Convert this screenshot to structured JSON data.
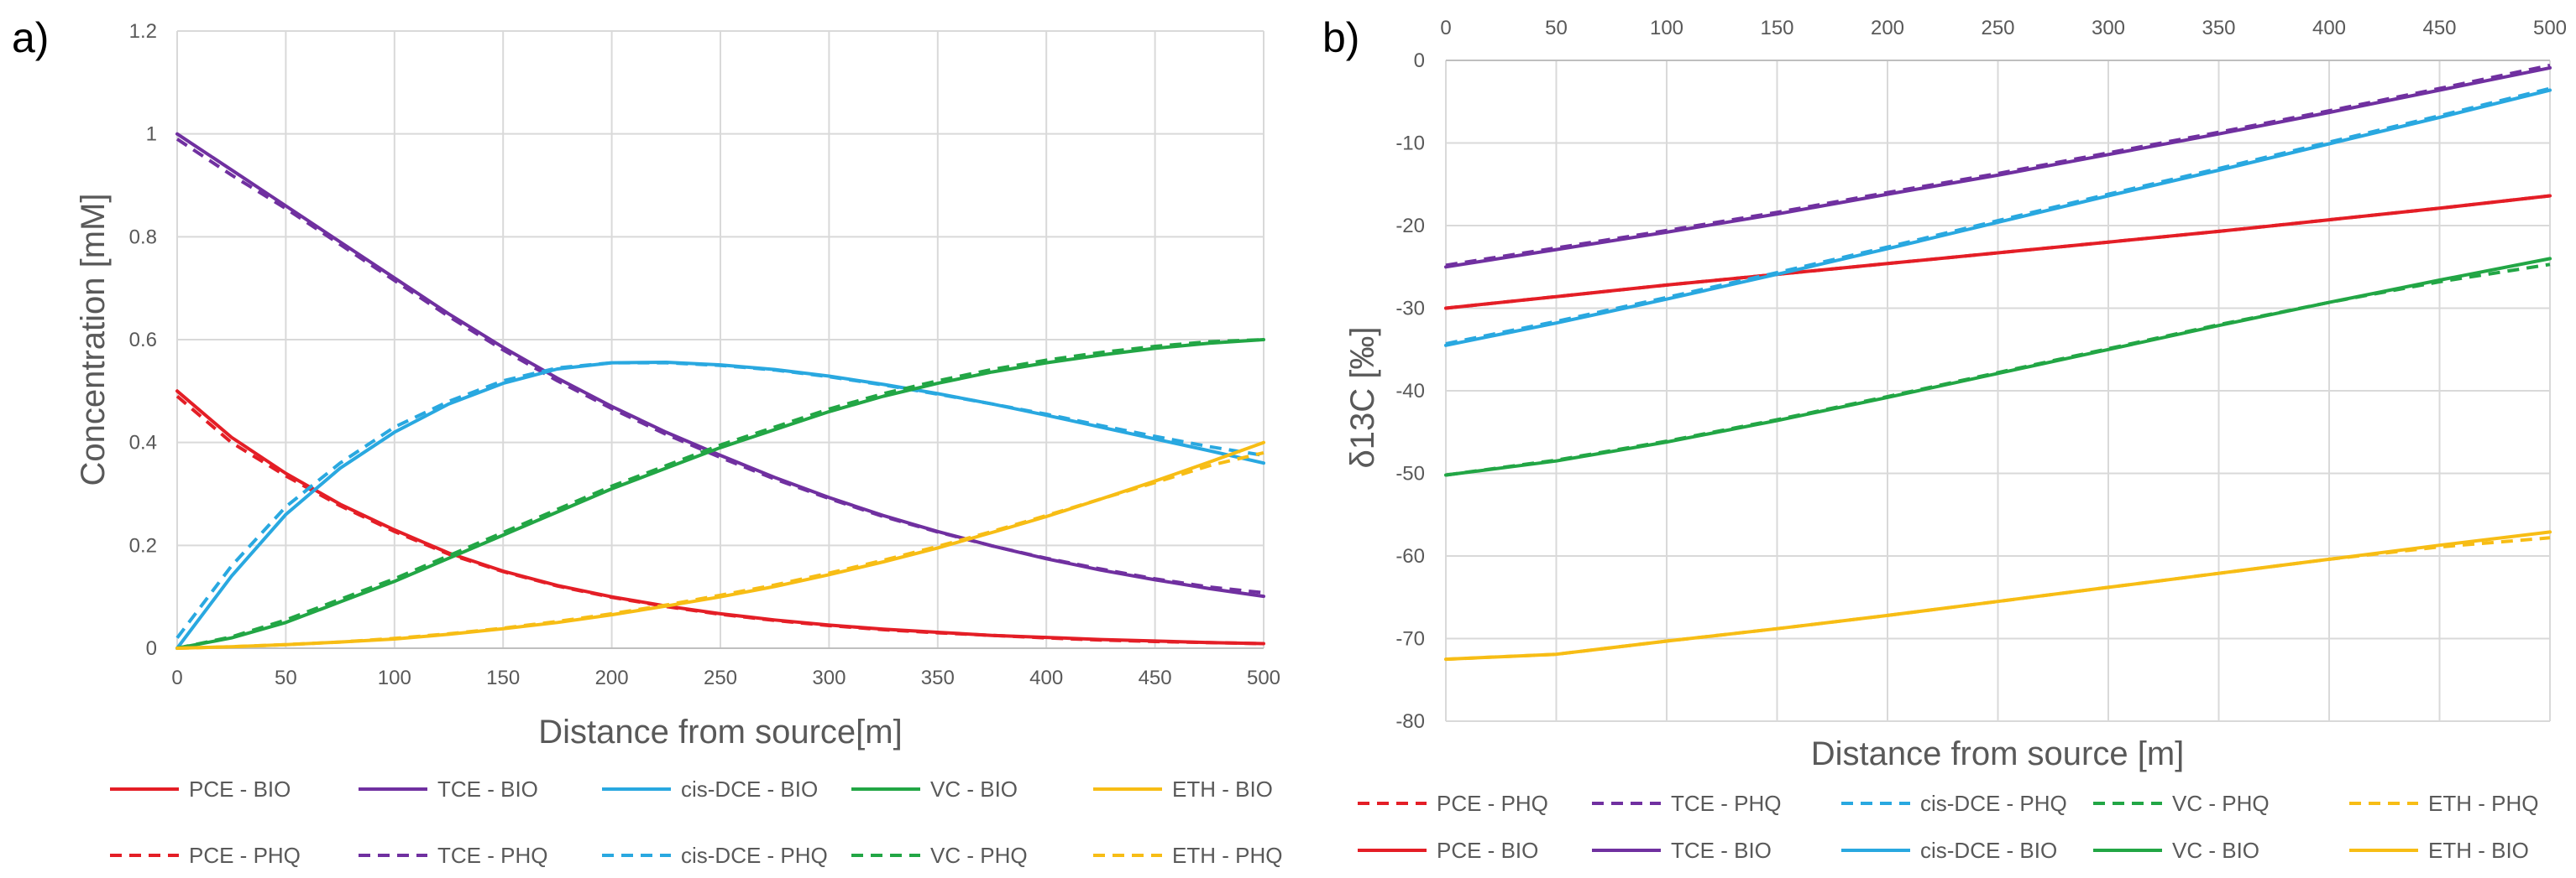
{
  "chart_data": [
    {
      "type": "line",
      "panel": "a)",
      "title": "",
      "xlabel": "Distance from source[m]",
      "ylabel": "Concentration [mM]",
      "x_axis_position": "bottom",
      "xlim": [
        0,
        500
      ],
      "ylim": [
        0,
        1.2
      ],
      "x_ticks": [
        "0",
        "50",
        "100",
        "150",
        "200",
        "250",
        "300",
        "350",
        "400",
        "450",
        "500"
      ],
      "y_ticks": [
        "0",
        "0.2",
        "0.4",
        "0.6",
        "0.8",
        "1",
        "1.2"
      ],
      "grid": true,
      "legend_position": "bottom",
      "legend": [
        {
          "label": "PCE - BIO",
          "color": "#e41e26",
          "dash": false
        },
        {
          "label": "TCE - BIO",
          "color": "#7030a0",
          "dash": false
        },
        {
          "label": "cis-DCE - BIO",
          "color": "#29a8e0",
          "dash": false
        },
        {
          "label": "VC - BIO",
          "color": "#22a645",
          "dash": false
        },
        {
          "label": "ETH - BIO",
          "color": "#f7bd15",
          "dash": false
        },
        {
          "label": "PCE - PHQ",
          "color": "#e41e26",
          "dash": true
        },
        {
          "label": "TCE - PHQ",
          "color": "#7030a0",
          "dash": true
        },
        {
          "label": "cis-DCE - PHQ",
          "color": "#29a8e0",
          "dash": true
        },
        {
          "label": "VC - PHQ",
          "color": "#22a645",
          "dash": true
        },
        {
          "label": "ETH - PHQ",
          "color": "#f7bd15",
          "dash": true
        }
      ],
      "x": [
        0,
        25,
        50,
        75,
        100,
        125,
        150,
        175,
        200,
        225,
        250,
        275,
        300,
        325,
        350,
        375,
        400,
        425,
        450,
        475,
        500
      ],
      "series": [
        {
          "name": "PCE - BIO",
          "color": "#e41e26",
          "dash": false,
          "values": [
            0.5,
            0.41,
            0.34,
            0.28,
            0.23,
            0.185,
            0.15,
            0.122,
            0.1,
            0.082,
            0.067,
            0.055,
            0.045,
            0.037,
            0.031,
            0.025,
            0.021,
            0.017,
            0.014,
            0.011,
            0.009
          ]
        },
        {
          "name": "PCE - PHQ",
          "color": "#e41e26",
          "dash": true,
          "values": [
            0.49,
            0.4,
            0.335,
            0.277,
            0.227,
            0.183,
            0.149,
            0.121,
            0.099,
            0.081,
            0.066,
            0.054,
            0.044,
            0.036,
            0.03,
            0.025,
            0.02,
            0.016,
            0.013,
            0.011,
            0.009
          ]
        },
        {
          "name": "TCE - BIO",
          "color": "#7030a0",
          "dash": false,
          "values": [
            1.0,
            0.93,
            0.86,
            0.79,
            0.72,
            0.65,
            0.585,
            0.525,
            0.47,
            0.42,
            0.375,
            0.332,
            0.293,
            0.258,
            0.227,
            0.199,
            0.174,
            0.152,
            0.133,
            0.116,
            0.101
          ]
        },
        {
          "name": "TCE - PHQ",
          "color": "#7030a0",
          "dash": true,
          "values": [
            0.99,
            0.92,
            0.855,
            0.785,
            0.715,
            0.645,
            0.58,
            0.52,
            0.466,
            0.416,
            0.371,
            0.329,
            0.291,
            0.256,
            0.226,
            0.199,
            0.175,
            0.154,
            0.135,
            0.119,
            0.108
          ]
        },
        {
          "name": "cis-DCE - BIO",
          "color": "#29a8e0",
          "dash": false,
          "values": [
            0.0,
            0.14,
            0.26,
            0.35,
            0.42,
            0.475,
            0.515,
            0.543,
            0.555,
            0.556,
            0.551,
            0.542,
            0.529,
            0.513,
            0.495,
            0.475,
            0.453,
            0.43,
            0.407,
            0.384,
            0.36
          ]
        },
        {
          "name": "cis-DCE - PHQ",
          "color": "#29a8e0",
          "dash": true,
          "values": [
            0.02,
            0.16,
            0.275,
            0.36,
            0.43,
            0.48,
            0.52,
            0.545,
            0.555,
            0.555,
            0.55,
            0.541,
            0.528,
            0.512,
            0.494,
            0.475,
            0.455,
            0.433,
            0.412,
            0.392,
            0.375
          ]
        },
        {
          "name": "VC - BIO",
          "color": "#22a645",
          "dash": false,
          "values": [
            0.0,
            0.02,
            0.05,
            0.09,
            0.13,
            0.175,
            0.22,
            0.265,
            0.31,
            0.35,
            0.39,
            0.425,
            0.46,
            0.49,
            0.515,
            0.537,
            0.555,
            0.57,
            0.583,
            0.593,
            0.6
          ]
        },
        {
          "name": "VC - PHQ",
          "color": "#22a645",
          "dash": true,
          "values": [
            0.0,
            0.022,
            0.055,
            0.095,
            0.135,
            0.18,
            0.225,
            0.27,
            0.315,
            0.355,
            0.395,
            0.43,
            0.465,
            0.495,
            0.52,
            0.542,
            0.56,
            0.575,
            0.587,
            0.596,
            0.6
          ]
        },
        {
          "name": "ETH - BIO",
          "color": "#f7bd15",
          "dash": false,
          "values": [
            0.0,
            0.003,
            0.007,
            0.012,
            0.018,
            0.027,
            0.038,
            0.05,
            0.065,
            0.082,
            0.1,
            0.12,
            0.143,
            0.168,
            0.195,
            0.225,
            0.256,
            0.29,
            0.325,
            0.362,
            0.4
          ]
        },
        {
          "name": "ETH - PHQ",
          "color": "#f7bd15",
          "dash": true,
          "values": [
            0.0,
            0.003,
            0.007,
            0.012,
            0.019,
            0.028,
            0.039,
            0.052,
            0.067,
            0.084,
            0.103,
            0.123,
            0.146,
            0.171,
            0.198,
            0.227,
            0.258,
            0.29,
            0.322,
            0.355,
            0.38
          ]
        }
      ]
    },
    {
      "type": "line",
      "panel": "b)",
      "title": "",
      "xlabel": "Distance from source [m]",
      "ylabel": "δ13C [‰]",
      "x_axis_position": "top",
      "xlim": [
        0,
        500
      ],
      "ylim": [
        -80,
        0
      ],
      "x_ticks": [
        "0",
        "50",
        "100",
        "150",
        "200",
        "250",
        "300",
        "350",
        "400",
        "450",
        "500"
      ],
      "y_ticks": [
        "-80",
        "-70",
        "-60",
        "-50",
        "-40",
        "-30",
        "-20",
        "-10",
        "0"
      ],
      "grid": true,
      "legend_position": "bottom",
      "legend": [
        {
          "label": "PCE - PHQ",
          "color": "#e41e26",
          "dash": true
        },
        {
          "label": "TCE - PHQ",
          "color": "#7030a0",
          "dash": true
        },
        {
          "label": "cis-DCE - PHQ",
          "color": "#29a8e0",
          "dash": true
        },
        {
          "label": "VC - PHQ",
          "color": "#22a645",
          "dash": true
        },
        {
          "label": "ETH - PHQ",
          "color": "#f7bd15",
          "dash": true
        },
        {
          "label": "PCE - BIO",
          "color": "#e41e26",
          "dash": false
        },
        {
          "label": "TCE - BIO",
          "color": "#7030a0",
          "dash": false
        },
        {
          "label": "cis-DCE - BIO",
          "color": "#29a8e0",
          "dash": false
        },
        {
          "label": "VC - BIO",
          "color": "#22a645",
          "dash": false
        },
        {
          "label": "ETH - BIO",
          "color": "#f7bd15",
          "dash": false
        }
      ],
      "x": [
        0,
        50,
        100,
        150,
        200,
        250,
        300,
        350,
        400,
        450,
        500
      ],
      "series": [
        {
          "name": "PCE - BIO",
          "color": "#e41e26",
          "dash": false,
          "values": [
            -30.0,
            -28.6,
            -27.2,
            -25.9,
            -24.6,
            -23.3,
            -22.0,
            -20.7,
            -19.3,
            -17.9,
            -16.4
          ]
        },
        {
          "name": "PCE - PHQ",
          "color": "#e41e26",
          "dash": true,
          "values": [
            -30.0,
            -28.6,
            -27.2,
            -25.9,
            -24.6,
            -23.3,
            -22.0,
            -20.7,
            -19.3,
            -17.9,
            -16.4
          ]
        },
        {
          "name": "TCE - BIO",
          "color": "#7030a0",
          "dash": false,
          "values": [
            -25.0,
            -22.9,
            -20.8,
            -18.6,
            -16.2,
            -13.9,
            -11.4,
            -8.9,
            -6.3,
            -3.6,
            -0.9
          ]
        },
        {
          "name": "TCE - PHQ",
          "color": "#7030a0",
          "dash": true,
          "values": [
            -24.8,
            -22.7,
            -20.6,
            -18.4,
            -16.0,
            -13.7,
            -11.2,
            -8.7,
            -6.1,
            -3.4,
            -0.6
          ]
        },
        {
          "name": "cis-DCE - BIO",
          "color": "#29a8e0",
          "dash": false,
          "values": [
            -34.5,
            -31.8,
            -28.9,
            -25.9,
            -22.8,
            -19.6,
            -16.4,
            -13.3,
            -10.1,
            -6.9,
            -3.6
          ]
        },
        {
          "name": "cis-DCE - PHQ",
          "color": "#29a8e0",
          "dash": true,
          "values": [
            -34.3,
            -31.6,
            -28.7,
            -25.7,
            -22.6,
            -19.4,
            -16.2,
            -13.1,
            -9.9,
            -6.7,
            -3.4
          ]
        },
        {
          "name": "VC - BIO",
          "color": "#22a645",
          "dash": false,
          "values": [
            -50.2,
            -48.5,
            -46.2,
            -43.6,
            -40.8,
            -37.9,
            -35.0,
            -32.1,
            -29.3,
            -26.6,
            -24.0
          ]
        },
        {
          "name": "VC - PHQ",
          "color": "#22a645",
          "dash": true,
          "values": [
            -50.2,
            -48.4,
            -46.1,
            -43.5,
            -40.7,
            -37.8,
            -34.9,
            -32.0,
            -29.3,
            -26.8,
            -24.7
          ]
        },
        {
          "name": "ETH - BIO",
          "color": "#f7bd15",
          "dash": false,
          "values": [
            -72.5,
            -71.9,
            -70.3,
            -68.8,
            -67.2,
            -65.5,
            -63.8,
            -62.1,
            -60.4,
            -58.7,
            -57.1
          ]
        },
        {
          "name": "ETH - PHQ",
          "color": "#f7bd15",
          "dash": true,
          "values": [
            -72.5,
            -71.9,
            -70.3,
            -68.8,
            -67.2,
            -65.5,
            -63.8,
            -62.1,
            -60.4,
            -58.9,
            -57.8
          ]
        }
      ]
    }
  ]
}
